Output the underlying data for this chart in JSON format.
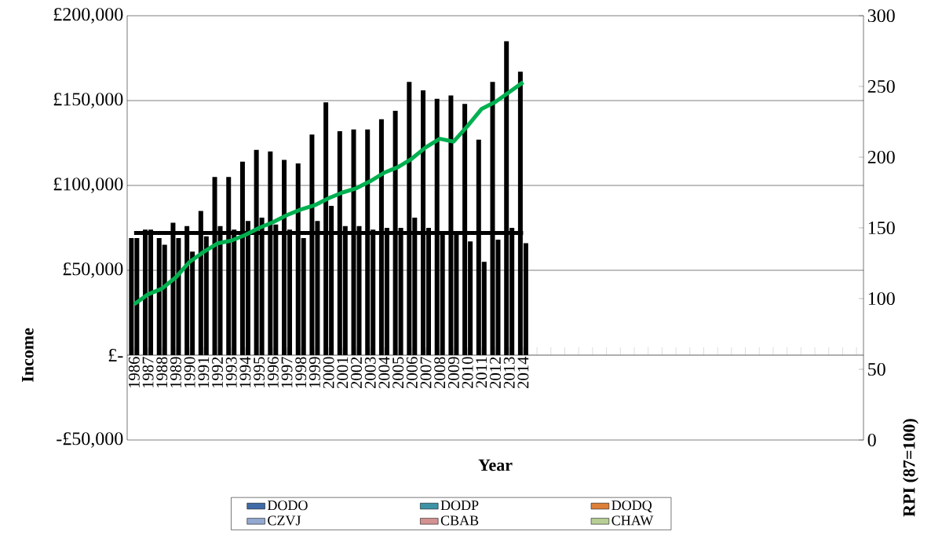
{
  "chart_data": {
    "type": "bar",
    "xlabel": "Year",
    "ylabel": "Income",
    "y2label": "RPI (87=100)",
    "categories": [
      "1986",
      "1987",
      "1988",
      "1989",
      "1990",
      "1991",
      "1992",
      "1993",
      "1994",
      "1995",
      "1996",
      "1997",
      "1998",
      "1999",
      "2000",
      "2001",
      "2002",
      "2003",
      "2004",
      "2005",
      "2006",
      "2007",
      "2008",
      "2009",
      "2010",
      "2011",
      "2012",
      "2013",
      "2014",
      null,
      null,
      null,
      null,
      null,
      null,
      null,
      null,
      null,
      null,
      null,
      null,
      null,
      null,
      null,
      null,
      null,
      null,
      null,
      null,
      null,
      null,
      null,
      null
    ],
    "ylim": [
      -50000,
      200000
    ],
    "yticks": [
      {
        "value": -50000,
        "label": "-£50,000"
      },
      {
        "value": 0,
        "label": "£-"
      },
      {
        "value": 50000,
        "label": "£50,000"
      },
      {
        "value": 100000,
        "label": "£100,000"
      },
      {
        "value": 150000,
        "label": "£150,000"
      },
      {
        "value": 200000,
        "label": "£200,000"
      }
    ],
    "y2lim": [
      0,
      300
    ],
    "y2ticks": [
      0,
      50,
      100,
      150,
      200,
      250,
      300
    ],
    "grid": "y",
    "legend": "bottom",
    "series": [
      {
        "color": "#000000",
        "values": [
          69000,
          74000,
          69000,
          78000,
          76000,
          85000,
          105000,
          105000,
          114000,
          121000,
          120000,
          115000,
          113000,
          130000,
          149000,
          132000,
          133000,
          133000,
          139000,
          144000,
          161000,
          156000,
          151000,
          153000,
          148000,
          127000,
          161000,
          185000,
          167000,
          null,
          null,
          null,
          null,
          null,
          null,
          null,
          null,
          null,
          null,
          null,
          null,
          null,
          null,
          null,
          null,
          null,
          null,
          null,
          null,
          null,
          null,
          null,
          null
        ]
      },
      {
        "color": "#000000",
        "values": [
          69000,
          74000,
          65000,
          69000,
          61000,
          70000,
          76000,
          74000,
          79000,
          81000,
          77000,
          74000,
          69000,
          79000,
          88000,
          76000,
          76000,
          74000,
          75000,
          75000,
          81000,
          75000,
          72000,
          71000,
          67000,
          55000,
          68000,
          75000,
          66000,
          null,
          null,
          null,
          null,
          null,
          null,
          null,
          null,
          null,
          null,
          null,
          null,
          null,
          null,
          null,
          null,
          null,
          null,
          null,
          null,
          null,
          null,
          null,
          null
        ]
      },
      {
        "type": "line",
        "color": "#000000",
        "values": [
          72000,
          72000,
          72000,
          72000,
          72000,
          72000,
          72000,
          72000,
          72000,
          72000,
          72000,
          72000,
          72000,
          72000,
          72000,
          72000,
          72000,
          72000,
          72000,
          72000,
          72000,
          72000,
          72000,
          72000,
          72000,
          72000,
          72000,
          72000,
          72000,
          null,
          null,
          null,
          null,
          null,
          null,
          null,
          null,
          null,
          null,
          null,
          null,
          null,
          null,
          null,
          null,
          null,
          null,
          null,
          null,
          null,
          null,
          null,
          null
        ]
      },
      {
        "type": "line",
        "axis": "y2",
        "color": "#00b050",
        "values": [
          96,
          103,
          107,
          115,
          126,
          133,
          139,
          141,
          145,
          150,
          154,
          159,
          163,
          166,
          171,
          175,
          178,
          183,
          189,
          193,
          199,
          207,
          213,
          211,
          222,
          234,
          239,
          246,
          253,
          null,
          null,
          null,
          null,
          null,
          null,
          null,
          null,
          null,
          null,
          null,
          null,
          null,
          null,
          null,
          null,
          null,
          null,
          null,
          null,
          null,
          null,
          null,
          null
        ]
      },
      {
        "name": "DODO",
        "color": "#3f6aa6",
        "values": [
          null,
          null,
          null,
          null,
          null,
          null,
          null,
          null,
          null,
          null,
          null,
          null,
          null,
          null,
          null,
          null,
          null,
          null,
          null,
          null,
          null,
          null,
          null,
          null,
          null,
          null,
          null,
          null,
          null,
          null,
          null,
          null,
          null,
          null,
          null,
          null,
          null,
          null,
          null,
          null,
          null,
          null,
          null,
          null,
          null,
          null,
          null,
          null,
          null,
          null,
          null,
          null,
          null
        ]
      },
      {
        "name": "DODP",
        "color": "#3d93a6",
        "values": [
          null,
          null,
          null,
          null,
          null,
          null,
          null,
          null,
          null,
          null,
          null,
          null,
          null,
          null,
          null,
          null,
          null,
          null,
          null,
          null,
          null,
          null,
          null,
          null,
          null,
          null,
          null,
          null,
          null,
          null,
          null,
          null,
          null,
          null,
          null,
          null,
          null,
          null,
          null,
          null,
          null,
          null,
          null,
          null,
          null,
          null,
          null,
          null,
          null,
          null,
          null,
          null,
          null
        ]
      },
      {
        "name": "DODQ",
        "color": "#dd7f39",
        "values": [
          null,
          null,
          null,
          null,
          null,
          null,
          null,
          null,
          null,
          null,
          null,
          null,
          null,
          null,
          null,
          null,
          null,
          null,
          null,
          null,
          null,
          null,
          null,
          null,
          null,
          null,
          null,
          null,
          null,
          null,
          null,
          null,
          null,
          null,
          null,
          null,
          null,
          null,
          null,
          null,
          null,
          null,
          null,
          null,
          null,
          null,
          null,
          null,
          null,
          null,
          null,
          null,
          null
        ]
      },
      {
        "name": "CZVJ",
        "color": "#93a9d1",
        "values": [
          null,
          null,
          null,
          null,
          null,
          null,
          null,
          null,
          null,
          null,
          null,
          null,
          null,
          null,
          null,
          null,
          null,
          null,
          null,
          null,
          null,
          null,
          null,
          null,
          null,
          null,
          null,
          null,
          null,
          null,
          null,
          null,
          null,
          null,
          null,
          null,
          null,
          null,
          null,
          null,
          null,
          null,
          null,
          null,
          null,
          null,
          null,
          null,
          null,
          null,
          null,
          null,
          null
        ]
      },
      {
        "name": "CBAB",
        "color": "#d39392",
        "values": [
          null,
          null,
          null,
          null,
          null,
          null,
          null,
          null,
          null,
          null,
          null,
          null,
          null,
          null,
          null,
          null,
          null,
          null,
          null,
          null,
          null,
          null,
          null,
          null,
          null,
          null,
          null,
          null,
          null,
          null,
          null,
          null,
          null,
          null,
          null,
          null,
          null,
          null,
          null,
          null,
          null,
          null,
          null,
          null,
          null,
          null,
          null,
          null,
          null,
          null,
          null,
          null,
          null
        ]
      },
      {
        "name": "CHAW",
        "color": "#b7cf96",
        "values": [
          null,
          null,
          null,
          null,
          null,
          null,
          null,
          null,
          null,
          null,
          null,
          null,
          null,
          null,
          null,
          null,
          null,
          null,
          null,
          null,
          null,
          null,
          null,
          null,
          null,
          null,
          null,
          null,
          null,
          null,
          null,
          null,
          null,
          null,
          null,
          null,
          null,
          null,
          null,
          null,
          null,
          null,
          null,
          null,
          null,
          null,
          null,
          null,
          null,
          null,
          null,
          null,
          null
        ]
      }
    ]
  }
}
